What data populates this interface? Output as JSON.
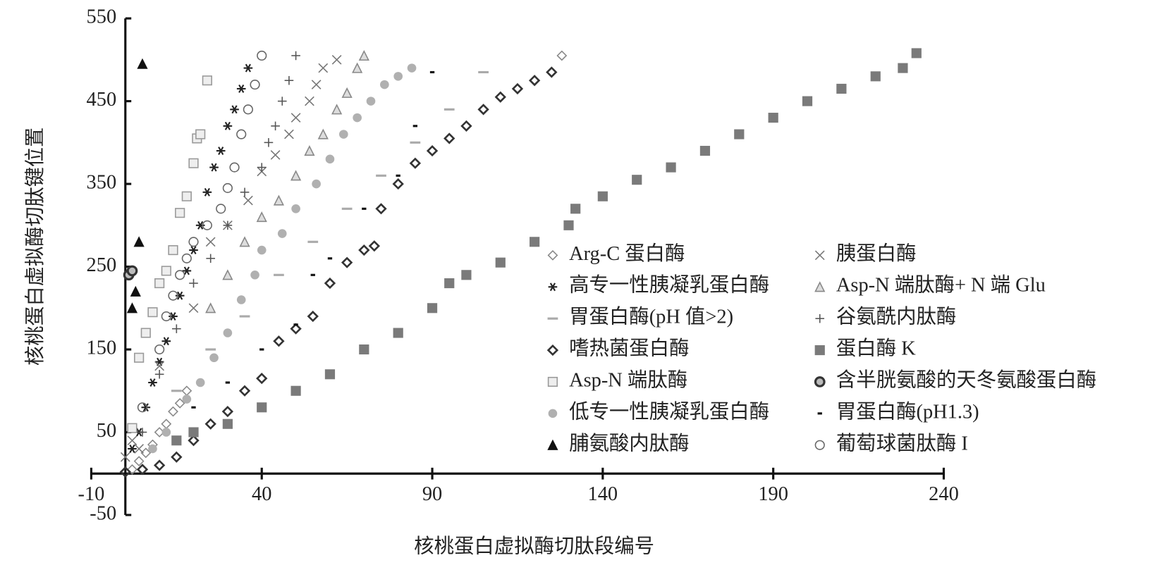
{
  "chart_data": {
    "type": "scatter",
    "x_label": "核桃蛋白虚拟酶切肽段编号",
    "y_label": "核桃蛋白虚拟酶切肽键位置",
    "xlim": [
      -10,
      240
    ],
    "ylim": [
      -50,
      550
    ],
    "xticks": [
      -10,
      40,
      90,
      140,
      190,
      240
    ],
    "yticks": [
      -50,
      50,
      150,
      250,
      350,
      450,
      550
    ],
    "series": [
      {
        "name": "Arg-C 蛋白酶",
        "marker": "diamond-open",
        "color": "#888888",
        "x": [
          2,
          4,
          6,
          8,
          10,
          12,
          14,
          16,
          18,
          128
        ],
        "values": [
          5,
          15,
          25,
          35,
          50,
          60,
          75,
          85,
          100,
          505
        ]
      },
      {
        "name": "高专一性胰凝乳蛋白酶",
        "marker": "asterisk",
        "color": "#222222",
        "x": [
          2,
          4,
          6,
          8,
          10,
          12,
          14,
          16,
          18,
          20,
          22,
          24,
          26,
          28,
          30,
          32,
          34,
          36
        ],
        "values": [
          30,
          50,
          80,
          110,
          135,
          160,
          190,
          215,
          245,
          270,
          300,
          340,
          370,
          390,
          420,
          440,
          465,
          490
        ]
      },
      {
        "name": "胃蛋白酶(pH 值>2)",
        "marker": "dash",
        "color": "#aaaaaa",
        "x": [
          15,
          25,
          35,
          45,
          55,
          65,
          75,
          85,
          95,
          105
        ],
        "values": [
          100,
          150,
          190,
          240,
          280,
          320,
          360,
          400,
          440,
          485
        ]
      },
      {
        "name": "嗜热菌蛋白酶",
        "marker": "diamond-bold",
        "color": "#333333",
        "x": [
          0,
          5,
          10,
          15,
          20,
          25,
          30,
          35,
          40,
          45,
          50,
          55,
          60,
          65,
          70,
          73,
          75,
          80,
          85,
          90,
          95,
          100,
          105,
          110,
          115,
          120,
          125
        ],
        "values": [
          2,
          5,
          10,
          20,
          40,
          60,
          75,
          100,
          115,
          160,
          175,
          190,
          230,
          255,
          270,
          275,
          320,
          350,
          375,
          390,
          405,
          420,
          440,
          455,
          465,
          475,
          485
        ]
      },
      {
        "name": "Asp-N 端肽酶",
        "marker": "square-open",
        "color": "#999999",
        "x": [
          2,
          4,
          6,
          8,
          10,
          12,
          14,
          16,
          18,
          20,
          21,
          22,
          24
        ],
        "values": [
          55,
          140,
          170,
          195,
          230,
          245,
          270,
          315,
          335,
          375,
          405,
          410,
          475
        ]
      },
      {
        "name": "低专一性胰凝乳蛋白酶",
        "marker": "circle-filled",
        "color": "#b0b0b0",
        "x": [
          8,
          12,
          18,
          22,
          26,
          30,
          34,
          38,
          40,
          46,
          50,
          56,
          60,
          64,
          68,
          72,
          76,
          80,
          84
        ],
        "values": [
          30,
          50,
          90,
          110,
          140,
          170,
          210,
          240,
          270,
          290,
          320,
          350,
          380,
          410,
          430,
          450,
          470,
          480,
          490
        ]
      },
      {
        "name": "脯氨酸内肽酶",
        "marker": "triangle-filled",
        "color": "#111111",
        "x": [
          2,
          3,
          4,
          5
        ],
        "values": [
          200,
          220,
          280,
          495
        ]
      },
      {
        "name": "胰蛋白酶",
        "marker": "cross",
        "color": "#777777",
        "x": [
          0,
          2,
          4,
          10,
          20,
          25,
          30,
          36,
          40,
          44,
          48,
          50,
          54,
          56,
          58,
          62
        ],
        "values": [
          20,
          40,
          30,
          130,
          200,
          280,
          300,
          330,
          365,
          385,
          410,
          430,
          450,
          470,
          490,
          500
        ]
      },
      {
        "name": "Asp-N 端肽酶+ N 端 Glu",
        "marker": "triangle-open",
        "color": "#888888",
        "x": [
          25,
          30,
          35,
          40,
          45,
          50,
          54,
          58,
          62,
          65,
          68,
          70
        ],
        "values": [
          200,
          240,
          280,
          310,
          330,
          360,
          390,
          410,
          440,
          460,
          490,
          505
        ]
      },
      {
        "name": "谷氨酰内肽酶",
        "marker": "plus",
        "color": "#555555",
        "x": [
          5,
          10,
          15,
          20,
          25,
          30,
          35,
          40,
          42,
          44,
          46,
          48,
          50
        ],
        "values": [
          50,
          120,
          175,
          230,
          260,
          300,
          340,
          370,
          400,
          420,
          450,
          475,
          505
        ]
      },
      {
        "name": "蛋白酶 K",
        "marker": "square-filled",
        "color": "#7a7a7a",
        "x": [
          15,
          20,
          30,
          40,
          50,
          60,
          70,
          80,
          90,
          95,
          100,
          110,
          120,
          130,
          132,
          140,
          150,
          160,
          170,
          180,
          190,
          200,
          210,
          220,
          228,
          232
        ],
        "values": [
          40,
          50,
          60,
          80,
          100,
          120,
          150,
          170,
          200,
          230,
          240,
          255,
          280,
          300,
          320,
          335,
          355,
          370,
          390,
          410,
          430,
          450,
          465,
          480,
          490,
          508
        ]
      },
      {
        "name": "含半胱氨酸的天冬氨酸蛋白酶",
        "marker": "circle-bold",
        "color": "#333333",
        "x": [
          1,
          2
        ],
        "values": [
          240,
          245
        ]
      },
      {
        "name": "胃蛋白酶(pH1.3)",
        "marker": "short-dash",
        "color": "#111111",
        "x": [
          20,
          30,
          40,
          50,
          55,
          60,
          70,
          80,
          85,
          90
        ],
        "values": [
          80,
          110,
          150,
          180,
          240,
          260,
          320,
          360,
          420,
          485
        ]
      },
      {
        "name": "葡萄球菌肽酶 I",
        "marker": "circle-open",
        "color": "#666666",
        "x": [
          5,
          10,
          12,
          14,
          16,
          18,
          20,
          24,
          28,
          30,
          32,
          34,
          36,
          38,
          40
        ],
        "values": [
          80,
          150,
          190,
          215,
          240,
          260,
          280,
          300,
          320,
          345,
          370,
          410,
          440,
          470,
          505
        ]
      }
    ]
  }
}
